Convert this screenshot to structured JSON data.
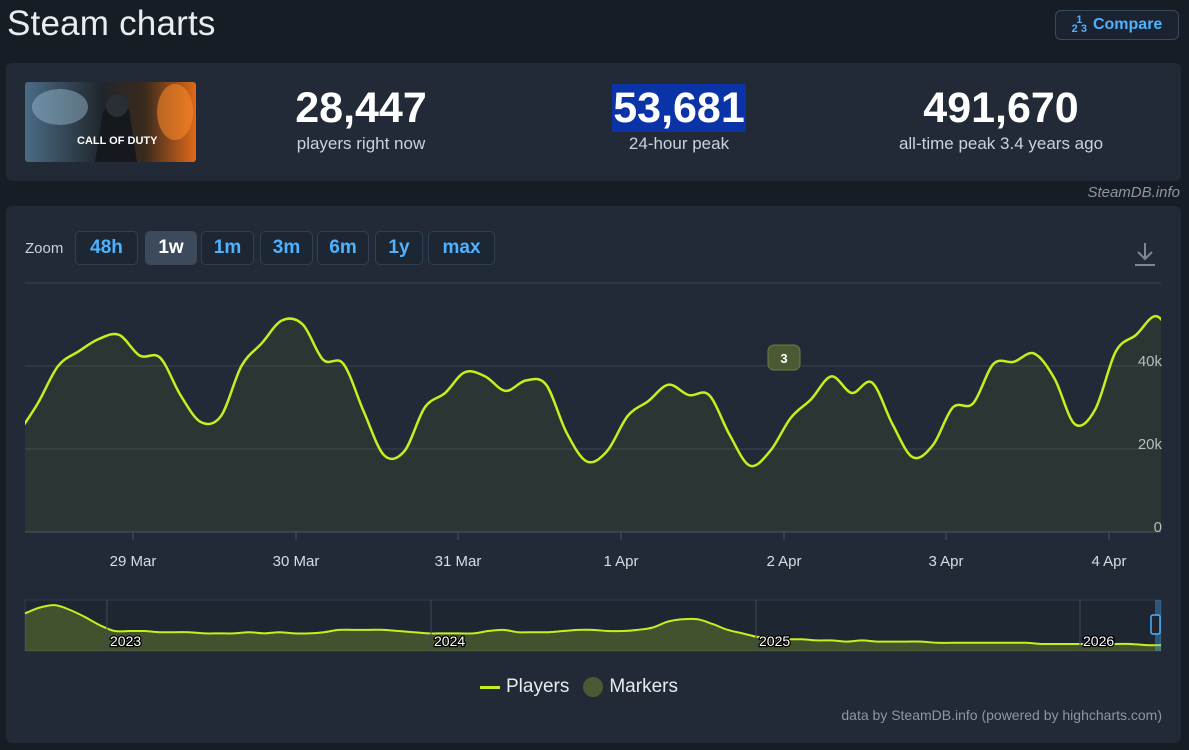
{
  "header": {
    "title": "Steam charts",
    "compare_label": "Compare",
    "compare_icon": "fraction-icon"
  },
  "game": {
    "capsule_text": "CALL OF DUTY"
  },
  "stats": [
    {
      "value": "28,447",
      "label": "players right now",
      "highlight": false
    },
    {
      "value": "53,681",
      "label": "24-hour peak",
      "highlight": true
    },
    {
      "value": "491,670",
      "label": "all-time peak 3.4 years ago",
      "highlight": false
    }
  ],
  "credit": "SteamDB.info",
  "zoom": {
    "label": "Zoom",
    "options": [
      "48h",
      "1w",
      "1m",
      "3m",
      "6m",
      "1y",
      "max"
    ],
    "selected": "1w"
  },
  "chart_data": {
    "type": "line",
    "series": [
      {
        "name": "Players",
        "color": "#c4f01e",
        "x": [
          "28 Mar 07:00",
          "28 Mar 10:00",
          "28 Mar 13:00",
          "28 Mar 16:00",
          "28 Mar 19:00",
          "28 Mar 22:00",
          "29 Mar 01:00",
          "29 Mar 04:00",
          "29 Mar 07:00",
          "29 Mar 10:00",
          "29 Mar 13:00",
          "29 Mar 16:00",
          "29 Mar 19:00",
          "29 Mar 22:00",
          "30 Mar 01:00",
          "30 Mar 04:00",
          "30 Mar 07:00",
          "30 Mar 10:00",
          "30 Mar 13:00",
          "30 Mar 16:00",
          "30 Mar 19:00",
          "30 Mar 22:00",
          "31 Mar 01:00",
          "31 Mar 04:00",
          "31 Mar 07:00",
          "31 Mar 10:00",
          "31 Mar 13:00",
          "31 Mar 16:00",
          "31 Mar 19:00",
          "31 Mar 22:00",
          "1 Apr 01:00",
          "1 Apr 04:00",
          "1 Apr 07:00",
          "1 Apr 10:00",
          "1 Apr 13:00",
          "1 Apr 16:00",
          "1 Apr 19:00",
          "1 Apr 22:00",
          "2 Apr 01:00",
          "2 Apr 04:00",
          "2 Apr 07:00",
          "2 Apr 10:00",
          "2 Apr 13:00",
          "2 Apr 16:00",
          "2 Apr 19:00",
          "2 Apr 22:00",
          "3 Apr 01:00",
          "3 Apr 04:00",
          "3 Apr 07:00",
          "3 Apr 10:00",
          "3 Apr 13:00",
          "3 Apr 16:00",
          "3 Apr 19:00",
          "3 Apr 22:00",
          "4 Apr 01:00",
          "4 Apr 04:00",
          "4 Apr 07:00",
          "4 Apr 10:00",
          "4 Apr 13:00",
          "4 Apr 16:00",
          "4 Apr 18:00"
        ],
        "values": [
          23500,
          31000,
          40000,
          43500,
          46500,
          47500,
          42500,
          42000,
          33000,
          26500,
          28000,
          40000,
          45500,
          51000,
          50000,
          41500,
          40500,
          29000,
          18500,
          19500,
          30000,
          33500,
          38500,
          37500,
          34000,
          36500,
          35500,
          24000,
          17000,
          19500,
          28000,
          31500,
          35500,
          33000,
          33000,
          23500,
          16000,
          19500,
          27500,
          32000,
          37500,
          33500,
          36000,
          26000,
          18000,
          21000,
          30000,
          31000,
          40500,
          41000,
          43000,
          37000,
          26000,
          29500,
          43500,
          47500,
          52000,
          46000,
          45000,
          34000,
          29000
        ]
      }
    ],
    "markers": [
      {
        "x": "2 Apr 00:00",
        "label": "3"
      }
    ],
    "xlabels": [
      "29 Mar",
      "30 Mar",
      "31 Mar",
      "1 Apr",
      "2 Apr",
      "3 Apr",
      "4 Apr"
    ],
    "ytick_labels": [
      "0",
      "20k",
      "40k"
    ],
    "ylim": [
      0,
      60000
    ],
    "grid": true,
    "navigator": {
      "year_labels": [
        "2023",
        "2024",
        "2025",
        "2026"
      ],
      "values": [
        52,
        57,
        59,
        55,
        49,
        42,
        37,
        37,
        37,
        36,
        36,
        36,
        35,
        35,
        35,
        36,
        35,
        36,
        35,
        35,
        36,
        38,
        38,
        38,
        38,
        37,
        36,
        35,
        35,
        35,
        35,
        37,
        38,
        36,
        36,
        36,
        37,
        38,
        38,
        37,
        37,
        38,
        40,
        45,
        47,
        47,
        43,
        38,
        35,
        32,
        31,
        30,
        30,
        29,
        29,
        28,
        29,
        28,
        28,
        28,
        28,
        27,
        27,
        27,
        27,
        27,
        27,
        27,
        26,
        26,
        26,
        26,
        26,
        26,
        26,
        25,
        25
      ]
    },
    "legend": [
      {
        "name": "Players",
        "kind": "line"
      },
      {
        "name": "Markers",
        "kind": "dot"
      }
    ],
    "legend_position": "bottom-center"
  },
  "footer": "data by SteamDB.info (powered by highcharts.com)"
}
